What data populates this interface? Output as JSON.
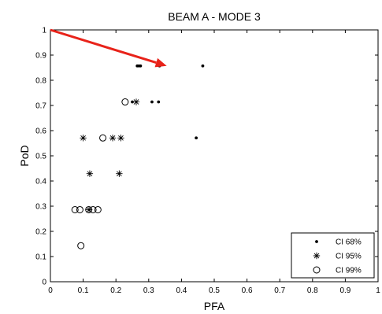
{
  "chart_data": {
    "type": "scatter",
    "title": "BEAM A - MODE 3",
    "xlabel": "PFA",
    "ylabel": "PoD",
    "xlim": [
      0,
      1
    ],
    "ylim": [
      0,
      1
    ],
    "xticks": [
      "0",
      "0.1",
      "0.2",
      "0.3",
      "0.4",
      "0.5",
      "0.6",
      "0.7",
      "0.8",
      "0.9",
      "1"
    ],
    "yticks": [
      "0",
      "0.1",
      "0.2",
      "0.3",
      "0.4",
      "0.5",
      "0.6",
      "0.7",
      "0.8",
      "0.9",
      "1"
    ],
    "grid": false,
    "legend_position": "bottom-right",
    "series": [
      {
        "name": "CI 68%",
        "marker": "dot",
        "color": "#000000",
        "points": [
          [
            0.265,
            0.857
          ],
          [
            0.27,
            0.857
          ],
          [
            0.275,
            0.857
          ],
          [
            0.333,
            0.857
          ],
          [
            0.465,
            0.857
          ],
          [
            0.25,
            0.714
          ],
          [
            0.31,
            0.714
          ],
          [
            0.33,
            0.714
          ],
          [
            0.445,
            0.571
          ]
        ]
      },
      {
        "name": "CI 95%",
        "marker": "star",
        "color": "#000000",
        "points": [
          [
            0.262,
            0.714
          ],
          [
            0.1,
            0.571
          ],
          [
            0.19,
            0.571
          ],
          [
            0.215,
            0.571
          ],
          [
            0.12,
            0.429
          ],
          [
            0.21,
            0.429
          ],
          [
            0.118,
            0.286
          ]
        ]
      },
      {
        "name": "CI 99%",
        "marker": "circle",
        "color": "#000000",
        "points": [
          [
            0.228,
            0.714
          ],
          [
            0.16,
            0.571
          ],
          [
            0.075,
            0.286
          ],
          [
            0.09,
            0.286
          ],
          [
            0.13,
            0.286
          ],
          [
            0.145,
            0.286
          ],
          [
            0.117,
            0.286
          ],
          [
            0.093,
            0.143
          ]
        ]
      }
    ],
    "annotation": {
      "type": "arrow",
      "color": "#e8231a",
      "from": [
        0.0,
        1.0
      ],
      "to": [
        0.355,
        0.857
      ]
    }
  }
}
